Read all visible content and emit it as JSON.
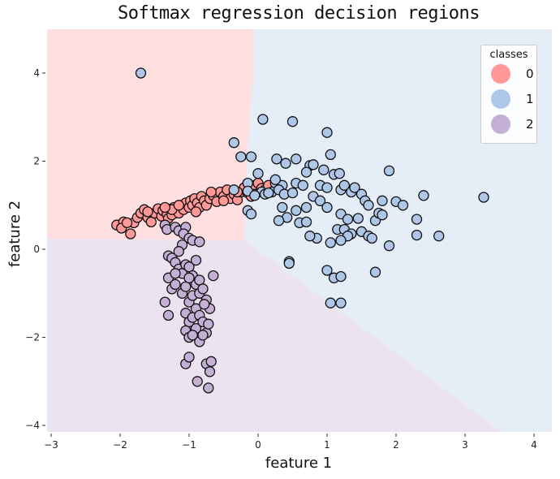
{
  "chart_data": {
    "type": "scatter",
    "title": "Softmax regression decision regions",
    "xlabel": "feature 1",
    "ylabel": "feature 2",
    "xlim": [
      -3,
      4.25
    ],
    "ylim": [
      -4.1,
      5.0
    ],
    "xticks": [
      -3,
      -2,
      -1,
      0,
      1,
      2,
      3,
      4
    ],
    "yticks": [
      -4,
      -2,
      0,
      2,
      4
    ],
    "grid": false,
    "legend": {
      "title": "classes",
      "position": "upper right",
      "entries": [
        {
          "label": "0",
          "color": "#ff9896"
        },
        {
          "label": "1",
          "color": "#aec7e8"
        },
        {
          "label": "2",
          "color": "#c5b0d5"
        }
      ]
    },
    "regions": [
      {
        "class": "0",
        "color": "#ffdfe0",
        "description": "upper-left: x < ~0, y > ~0.25"
      },
      {
        "class": "1",
        "color": "#e5edf7",
        "description": "right side, above diagonal boundary from (-0.2,0.2) to (3.5,-4.1)"
      },
      {
        "class": "2",
        "color": "#ebe4f0",
        "description": "lower-left: y < ~0.25, below diagonal boundary"
      }
    ],
    "series": [
      {
        "name": "0",
        "color": "#ff9896",
        "points": [
          [
            -2.05,
            0.55
          ],
          [
            -1.95,
            0.62
          ],
          [
            -1.98,
            0.48
          ],
          [
            -1.85,
            0.35
          ],
          [
            -1.8,
            0.6
          ],
          [
            -1.75,
            0.72
          ],
          [
            -1.7,
            0.82
          ],
          [
            -1.65,
            0.9
          ],
          [
            -1.6,
            0.72
          ],
          [
            -1.55,
            0.62
          ],
          [
            -1.5,
            0.82
          ],
          [
            -1.45,
            0.92
          ],
          [
            -1.4,
            0.75
          ],
          [
            -1.38,
            0.88
          ],
          [
            -1.32,
            0.8
          ],
          [
            -1.3,
            0.7
          ],
          [
            -1.25,
            0.78
          ],
          [
            -1.22,
            0.95
          ],
          [
            -1.18,
            0.88
          ],
          [
            -1.15,
            0.82
          ],
          [
            -1.1,
            1.0
          ],
          [
            -1.08,
            0.9
          ],
          [
            -1.05,
            1.05
          ],
          [
            -1.0,
            0.95
          ],
          [
            -0.98,
            1.1
          ],
          [
            -0.95,
            1.0
          ],
          [
            -0.92,
            1.15
          ],
          [
            -0.88,
            1.05
          ],
          [
            -0.85,
            0.95
          ],
          [
            -0.82,
            1.2
          ],
          [
            -0.78,
            1.1
          ],
          [
            -0.75,
            1.0
          ],
          [
            -0.7,
            1.15
          ],
          [
            -0.65,
            1.22
          ],
          [
            -0.6,
            1.08
          ],
          [
            -0.55,
            1.3
          ],
          [
            -0.5,
            1.2
          ],
          [
            -0.45,
            1.35
          ],
          [
            -0.4,
            1.15
          ],
          [
            -0.35,
            1.25
          ],
          [
            -0.3,
            1.12
          ],
          [
            -0.25,
            1.3
          ],
          [
            -0.2,
            1.4
          ],
          [
            -0.15,
            1.28
          ],
          [
            -0.1,
            1.2
          ],
          [
            -0.05,
            1.45
          ],
          [
            0.0,
            1.5
          ],
          [
            0.05,
            1.38
          ],
          [
            0.1,
            1.35
          ],
          [
            -0.05,
            1.25
          ],
          [
            -1.25,
            0.9
          ],
          [
            -1.6,
            0.85
          ],
          [
            -1.9,
            0.6
          ],
          [
            -1.35,
            0.95
          ],
          [
            -1.15,
            1.0
          ],
          [
            -0.9,
            0.85
          ],
          [
            -0.68,
            1.3
          ],
          [
            -0.5,
            1.1
          ],
          [
            -0.3,
            1.3
          ],
          [
            0.15,
            1.45
          ]
        ]
      },
      {
        "name": "1",
        "color": "#aec7e8",
        "points": [
          [
            -1.7,
            4.0
          ],
          [
            0.07,
            2.95
          ],
          [
            0.5,
            2.9
          ],
          [
            1.0,
            2.65
          ],
          [
            -0.35,
            2.42
          ],
          [
            -0.25,
            2.1
          ],
          [
            -0.1,
            2.1
          ],
          [
            1.05,
            2.15
          ],
          [
            0.27,
            2.05
          ],
          [
            0.55,
            2.05
          ],
          [
            0.4,
            1.95
          ],
          [
            0.75,
            1.9
          ],
          [
            0.8,
            1.92
          ],
          [
            1.1,
            1.7
          ],
          [
            1.18,
            1.72
          ],
          [
            0.7,
            1.75
          ],
          [
            0.95,
            1.8
          ],
          [
            1.9,
            1.78
          ],
          [
            -0.15,
            1.5
          ],
          [
            0.0,
            1.72
          ],
          [
            0.25,
            1.5
          ],
          [
            0.35,
            1.45
          ],
          [
            0.55,
            1.5
          ],
          [
            0.65,
            1.45
          ],
          [
            0.9,
            1.45
          ],
          [
            1.0,
            1.4
          ],
          [
            1.2,
            1.35
          ],
          [
            1.25,
            1.45
          ],
          [
            1.35,
            1.3
          ],
          [
            1.4,
            1.4
          ],
          [
            1.5,
            1.25
          ],
          [
            1.55,
            1.1
          ],
          [
            1.6,
            1.0
          ],
          [
            1.8,
            1.1
          ],
          [
            2.0,
            1.08
          ],
          [
            2.1,
            1.0
          ],
          [
            2.4,
            1.22
          ],
          [
            3.27,
            1.18
          ],
          [
            0.8,
            1.2
          ],
          [
            0.9,
            1.1
          ],
          [
            0.7,
            0.95
          ],
          [
            0.55,
            0.88
          ],
          [
            0.35,
            0.95
          ],
          [
            0.42,
            0.72
          ],
          [
            0.3,
            0.65
          ],
          [
            0.6,
            0.6
          ],
          [
            0.7,
            0.62
          ],
          [
            1.0,
            0.95
          ],
          [
            1.2,
            0.8
          ],
          [
            1.3,
            0.68
          ],
          [
            1.45,
            0.7
          ],
          [
            1.7,
            0.65
          ],
          [
            1.75,
            0.82
          ],
          [
            1.8,
            0.78
          ],
          [
            2.3,
            0.68
          ],
          [
            1.15,
            0.45
          ],
          [
            1.25,
            0.45
          ],
          [
            1.35,
            0.35
          ],
          [
            1.5,
            0.4
          ],
          [
            1.6,
            0.3
          ],
          [
            1.65,
            0.25
          ],
          [
            1.9,
            0.08
          ],
          [
            2.3,
            0.32
          ],
          [
            2.62,
            0.3
          ],
          [
            1.3,
            0.3
          ],
          [
            1.2,
            0.2
          ],
          [
            1.05,
            0.15
          ],
          [
            0.85,
            0.25
          ],
          [
            0.75,
            0.3
          ],
          [
            0.45,
            -0.28
          ],
          [
            0.45,
            -0.32
          ],
          [
            1.0,
            -0.48
          ],
          [
            1.1,
            -0.65
          ],
          [
            1.2,
            -0.62
          ],
          [
            1.7,
            -0.52
          ],
          [
            1.05,
            -1.22
          ],
          [
            1.2,
            -1.22
          ],
          [
            -0.15,
            0.88
          ],
          [
            -0.1,
            0.8
          ],
          [
            -0.35,
            1.35
          ],
          [
            -0.15,
            1.32
          ],
          [
            0.05,
            1.3
          ],
          [
            0.1,
            1.25
          ],
          [
            0.2,
            1.3
          ],
          [
            0.25,
            1.58
          ],
          [
            -0.05,
            1.22
          ],
          [
            0.15,
            1.28
          ],
          [
            0.3,
            1.35
          ],
          [
            0.38,
            1.25
          ],
          [
            0.5,
            1.28
          ]
        ]
      },
      {
        "name": "2",
        "color": "#c5b0d5",
        "points": [
          [
            -1.35,
            0.55
          ],
          [
            -1.32,
            0.45
          ],
          [
            -1.2,
            0.5
          ],
          [
            -1.15,
            0.42
          ],
          [
            -1.05,
            0.5
          ],
          [
            -1.08,
            0.35
          ],
          [
            -1.0,
            0.25
          ],
          [
            -0.95,
            0.2
          ],
          [
            -0.85,
            0.17
          ],
          [
            -1.1,
            0.1
          ],
          [
            -1.3,
            -0.15
          ],
          [
            -1.25,
            -0.2
          ],
          [
            -1.2,
            -0.3
          ],
          [
            -1.15,
            -0.45
          ],
          [
            -1.1,
            -0.55
          ],
          [
            -1.05,
            -0.35
          ],
          [
            -1.0,
            -0.4
          ],
          [
            -0.95,
            -0.6
          ],
          [
            -0.9,
            -0.8
          ],
          [
            -0.85,
            -0.7
          ],
          [
            -1.3,
            -0.65
          ],
          [
            -1.25,
            -0.9
          ],
          [
            -1.2,
            -0.55
          ],
          [
            -1.35,
            -1.2
          ],
          [
            -1.1,
            -1.0
          ],
          [
            -1.05,
            -0.85
          ],
          [
            -1.0,
            -1.2
          ],
          [
            -0.95,
            -1.05
          ],
          [
            -0.9,
            -1.35
          ],
          [
            -0.85,
            -1.0
          ],
          [
            -0.8,
            -0.9
          ],
          [
            -0.75,
            -1.15
          ],
          [
            -0.7,
            -1.35
          ],
          [
            -0.65,
            -0.6
          ],
          [
            -1.15,
            -0.05
          ],
          [
            -1.0,
            -0.65
          ],
          [
            -1.05,
            -1.45
          ],
          [
            -1.0,
            -1.65
          ],
          [
            -0.95,
            -1.55
          ],
          [
            -0.9,
            -1.8
          ],
          [
            -0.85,
            -1.5
          ],
          [
            -0.8,
            -1.65
          ],
          [
            -0.75,
            -1.9
          ],
          [
            -0.72,
            -1.7
          ],
          [
            -1.05,
            -1.85
          ],
          [
            -1.0,
            -2.0
          ],
          [
            -0.95,
            -1.95
          ],
          [
            -0.85,
            -2.1
          ],
          [
            -0.8,
            -1.95
          ],
          [
            -1.05,
            -2.6
          ],
          [
            -1.0,
            -2.45
          ],
          [
            -0.75,
            -2.6
          ],
          [
            -0.68,
            -2.55
          ],
          [
            -0.7,
            -2.78
          ],
          [
            -0.88,
            -3.0
          ],
          [
            -0.72,
            -3.15
          ],
          [
            -1.3,
            -1.5
          ],
          [
            -1.2,
            -0.8
          ],
          [
            -0.9,
            -0.25
          ],
          [
            -0.78,
            -1.25
          ]
        ]
      }
    ]
  },
  "legend": {
    "title": "classes",
    "items": [
      {
        "label": "0",
        "color": "#ff9896"
      },
      {
        "label": "1",
        "color": "#aec7e8"
      },
      {
        "label": "2",
        "color": "#c5b0d5"
      }
    ]
  }
}
